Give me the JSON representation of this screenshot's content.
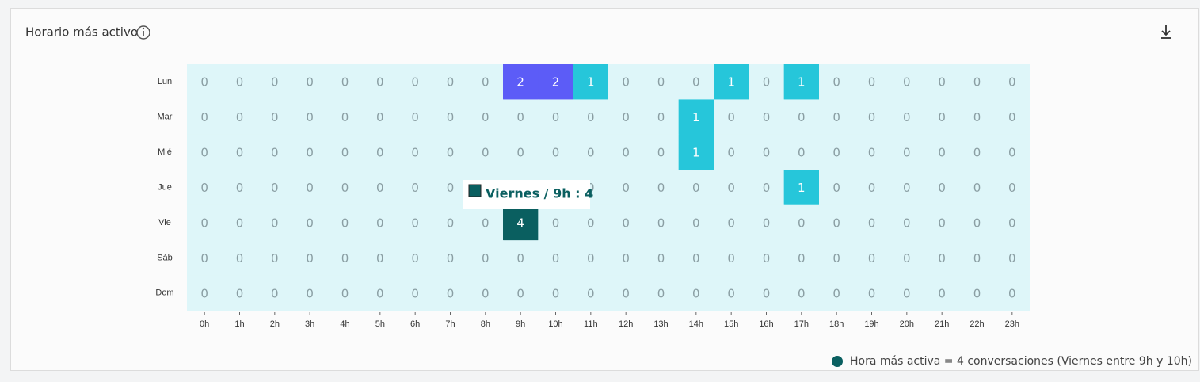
{
  "chart_data": {
    "type": "heatmap",
    "title": "Horario más activo",
    "categories": [
      "0h",
      "1h",
      "2h",
      "3h",
      "4h",
      "5h",
      "6h",
      "7h",
      "8h",
      "9h",
      "10h",
      "11h",
      "12h",
      "13h",
      "14h",
      "15h",
      "16h",
      "17h",
      "18h",
      "19h",
      "20h",
      "21h",
      "22h",
      "23h"
    ],
    "series": [
      {
        "name": "Lun",
        "values": [
          0,
          0,
          0,
          0,
          0,
          0,
          0,
          0,
          0,
          2,
          2,
          1,
          0,
          0,
          0,
          1,
          0,
          1,
          0,
          0,
          0,
          0,
          0,
          0
        ]
      },
      {
        "name": "Mar",
        "values": [
          0,
          0,
          0,
          0,
          0,
          0,
          0,
          0,
          0,
          0,
          0,
          0,
          0,
          0,
          1,
          0,
          0,
          0,
          0,
          0,
          0,
          0,
          0,
          0
        ]
      },
      {
        "name": "Mié",
        "values": [
          0,
          0,
          0,
          0,
          0,
          0,
          0,
          0,
          0,
          0,
          0,
          0,
          0,
          0,
          1,
          0,
          0,
          0,
          0,
          0,
          0,
          0,
          0,
          0
        ]
      },
      {
        "name": "Jue",
        "values": [
          0,
          0,
          0,
          0,
          0,
          0,
          0,
          0,
          0,
          0,
          0,
          0,
          0,
          0,
          0,
          0,
          0,
          1,
          0,
          0,
          0,
          0,
          0,
          0
        ]
      },
      {
        "name": "Vie",
        "values": [
          0,
          0,
          0,
          0,
          0,
          0,
          0,
          0,
          0,
          4,
          0,
          0,
          0,
          0,
          0,
          0,
          0,
          0,
          0,
          0,
          0,
          0,
          0,
          0
        ]
      },
      {
        "name": "Sáb",
        "values": [
          0,
          0,
          0,
          0,
          0,
          0,
          0,
          0,
          0,
          0,
          0,
          0,
          0,
          0,
          0,
          0,
          0,
          0,
          0,
          0,
          0,
          0,
          0,
          0
        ]
      },
      {
        "name": "Dom",
        "values": [
          0,
          0,
          0,
          0,
          0,
          0,
          0,
          0,
          0,
          0,
          0,
          0,
          0,
          0,
          0,
          0,
          0,
          0,
          0,
          0,
          0,
          0,
          0,
          0
        ]
      }
    ],
    "colors": {
      "0": "#def6f9",
      "1": "#26c6da",
      "2": "#5c5cf7",
      "4": "#0a5f60"
    },
    "tooltip": "Viernes / 9h : 4",
    "legend": "Hora más activa = 4 conversaciones (Viernes entre 9h y 10h)"
  }
}
